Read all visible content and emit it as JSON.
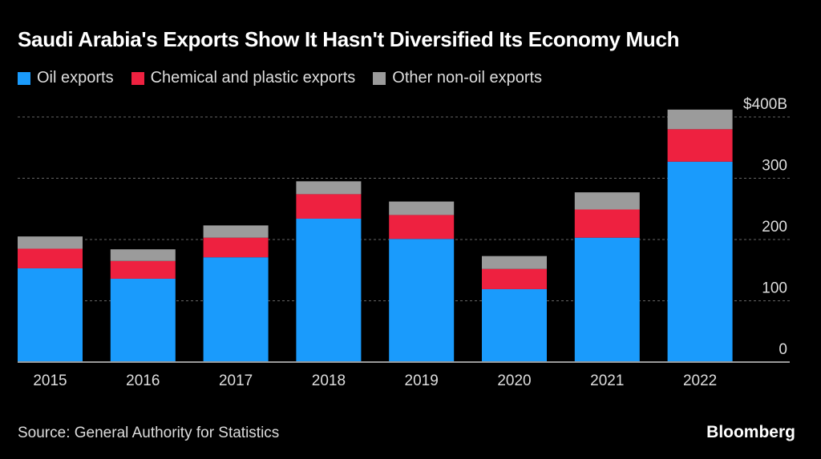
{
  "chart_data": {
    "type": "bar",
    "stacked": true,
    "title": "Saudi Arabia's Exports Show It Hasn't Diversified Its Economy Much",
    "categories": [
      "2015",
      "2016",
      "2017",
      "2018",
      "2019",
      "2020",
      "2021",
      "2022"
    ],
    "series": [
      {
        "name": "Oil exports",
        "color": "#1a9bfc",
        "values": [
          153,
          136,
          171,
          234,
          201,
          119,
          203,
          327
        ]
      },
      {
        "name": "Chemical and plastic exports",
        "color": "#ee2140",
        "values": [
          32,
          29,
          32,
          40,
          39,
          33,
          46,
          53
        ]
      },
      {
        "name": "Other non-oil exports",
        "color": "#9b9b9b",
        "values": [
          20,
          19,
          20,
          21,
          22,
          21,
          28,
          32
        ]
      }
    ],
    "yticks": [
      {
        "value": 0,
        "label": "0"
      },
      {
        "value": 100,
        "label": "100"
      },
      {
        "value": 200,
        "label": "200"
      },
      {
        "value": 300,
        "label": "300"
      },
      {
        "value": 400,
        "label": "$400B"
      }
    ],
    "ylim": [
      0,
      400
    ],
    "grid": true,
    "legend_placement": "top-left",
    "source": "Source: General Authority for Statistics",
    "brand": "Bloomberg"
  }
}
